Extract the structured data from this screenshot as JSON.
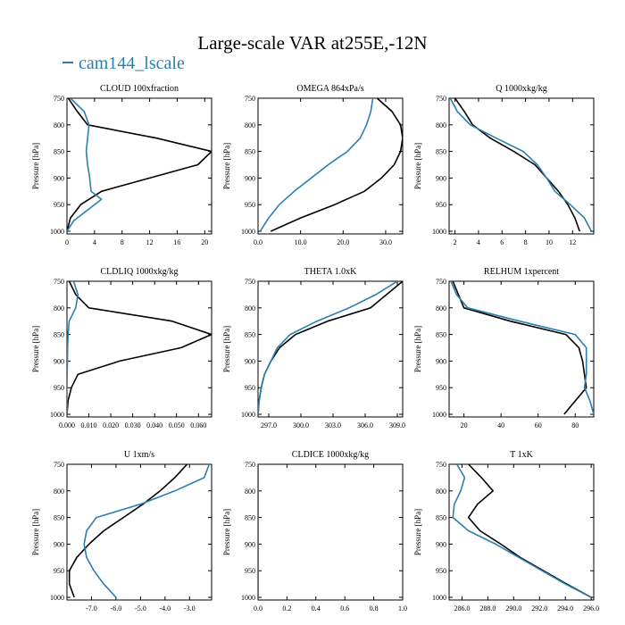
{
  "title": "Large-scale VAR at255E,-12N",
  "legend": {
    "label": "cam144_lscale",
    "color": "#2a7fb0"
  },
  "colors": {
    "model": "#2a7fb0",
    "reference": "#000000"
  },
  "chart_data": [
    {
      "type": "line",
      "title": "CLOUD  100xfraction",
      "ylabel": "Pressure [hPa]",
      "xlim": [
        0,
        21
      ],
      "ylim": [
        1005,
        750
      ],
      "xticks": [
        0,
        4,
        8,
        12,
        16,
        20
      ],
      "xtick_labels": [
        "0",
        "4",
        "8",
        "12",
        "16",
        "20"
      ],
      "yticks": [
        750,
        800,
        850,
        900,
        950,
        1000
      ],
      "series": [
        {
          "color": "#000000",
          "p": [
            750,
            775,
            800,
            825,
            850,
            875,
            900,
            925,
            950,
            975,
            1000
          ],
          "x": [
            0.2,
            1.5,
            3.0,
            13.0,
            21.0,
            19.0,
            12.0,
            5.0,
            2.0,
            0.5,
            0
          ]
        },
        {
          "color": "#2a7fb0",
          "p": [
            750,
            775,
            800,
            825,
            850,
            875,
            900,
            925,
            940,
            960,
            980,
            1000
          ],
          "x": [
            0.5,
            2.5,
            3.2,
            3.0,
            2.8,
            3.0,
            3.3,
            3.5,
            5.0,
            3.0,
            1.0,
            0
          ]
        }
      ]
    },
    {
      "type": "line",
      "title": "OMEGA  864xPa/s",
      "ylabel": "Pressure [hPa]",
      "xlim": [
        0,
        34
      ],
      "ylim": [
        1005,
        750
      ],
      "xticks": [
        0,
        10,
        20,
        30
      ],
      "xtick_labels": [
        "0.0",
        "10.0",
        "20.0",
        "30.0"
      ],
      "yticks": [
        750,
        800,
        850,
        900,
        950,
        1000
      ],
      "series": [
        {
          "color": "#000000",
          "p": [
            750,
            775,
            800,
            825,
            850,
            875,
            900,
            925,
            950,
            975,
            1000
          ],
          "x": [
            28.0,
            31.5,
            33.5,
            34.0,
            33.5,
            32.0,
            29.0,
            25.0,
            18.0,
            10.0,
            3.0
          ]
        },
        {
          "color": "#2a7fb0",
          "p": [
            750,
            775,
            800,
            825,
            850,
            875,
            900,
            925,
            950,
            975,
            1000
          ],
          "x": [
            27.0,
            26.5,
            25.5,
            24.0,
            21.0,
            16.5,
            12.5,
            8.5,
            5.0,
            2.5,
            0.5
          ]
        }
      ]
    },
    {
      "type": "line",
      "title": "Q  1000xkg/kg",
      "ylabel": "Pressure [hPa]",
      "xlim": [
        1.5,
        13.8
      ],
      "ylim": [
        1005,
        750
      ],
      "xticks": [
        2,
        4,
        6,
        8,
        10,
        12
      ],
      "xtick_labels": [
        "2",
        "4",
        "6",
        "8",
        "10",
        "12"
      ],
      "yticks": [
        750,
        800,
        850,
        900,
        950,
        1000
      ],
      "series": [
        {
          "color": "#000000",
          "p": [
            750,
            775,
            800,
            825,
            850,
            875,
            900,
            925,
            950,
            975,
            1000
          ],
          "x": [
            2.0,
            2.8,
            3.5,
            5.0,
            7.0,
            8.8,
            9.8,
            10.8,
            11.6,
            12.2,
            12.6
          ]
        },
        {
          "color": "#2a7fb0",
          "p": [
            750,
            775,
            800,
            825,
            850,
            875,
            900,
            925,
            950,
            975,
            1000
          ],
          "x": [
            1.6,
            2.2,
            3.3,
            5.5,
            7.8,
            9.0,
            9.8,
            10.5,
            11.8,
            13.0,
            13.6
          ]
        }
      ]
    },
    {
      "type": "line",
      "title": "CLDLIQ  1000xkg/kg",
      "ylabel": "Pressure [hPa]",
      "xlim": [
        0,
        0.066
      ],
      "ylim": [
        1005,
        750
      ],
      "xticks": [
        0,
        0.01,
        0.02,
        0.03,
        0.04,
        0.05,
        0.06
      ],
      "xtick_labels": [
        "0.000",
        "0.010",
        "0.020",
        "0.030",
        "0.040",
        "0.050",
        "0.060"
      ],
      "yticks": [
        750,
        800,
        850,
        900,
        950,
        1000
      ],
      "series": [
        {
          "color": "#000000",
          "p": [
            750,
            775,
            800,
            825,
            850,
            875,
            900,
            925,
            950,
            975,
            1000
          ],
          "x": [
            0.001,
            0.004,
            0.01,
            0.048,
            0.066,
            0.052,
            0.024,
            0.005,
            0.002,
            0.0005,
            0
          ]
        },
        {
          "color": "#2a7fb0",
          "p": [
            750,
            775,
            800,
            825,
            850,
            875,
            900,
            925,
            950,
            975,
            1000
          ],
          "x": [
            0.003,
            0.005,
            0.004,
            0.001,
            0.0005,
            0.0003,
            0.0002,
            0.0001,
            0,
            0,
            0
          ]
        }
      ]
    },
    {
      "type": "line",
      "title": "THETA  1.0xK",
      "ylabel": "Pressure [hPa]",
      "xlim": [
        296.0,
        309.5
      ],
      "ylim": [
        1005,
        750
      ],
      "xticks": [
        297,
        300,
        303,
        306,
        309
      ],
      "xtick_labels": [
        "297.0",
        "300.0",
        "303.0",
        "306.0",
        "309.0"
      ],
      "yticks": [
        750,
        800,
        850,
        900,
        950,
        1000
      ],
      "series": [
        {
          "color": "#000000",
          "p": [
            750,
            775,
            800,
            825,
            850,
            875,
            900,
            925,
            950,
            975,
            1000
          ],
          "x": [
            309.5,
            308.0,
            306.5,
            302.5,
            299.5,
            298.0,
            297.2,
            296.6,
            296.3,
            296.1,
            296.0
          ]
        },
        {
          "color": "#2a7fb0",
          "p": [
            750,
            775,
            800,
            825,
            850,
            875,
            900,
            925,
            950,
            975,
            1000
          ],
          "x": [
            309.0,
            307.0,
            304.5,
            301.5,
            299.0,
            297.8,
            297.2,
            296.6,
            296.3,
            296.1,
            296.0
          ]
        }
      ]
    },
    {
      "type": "line",
      "title": "RELHUM  1xpercent",
      "ylabel": "Pressure [hPa]",
      "xlim": [
        12,
        90
      ],
      "ylim": [
        1005,
        750
      ],
      "xticks": [
        20,
        40,
        60,
        80
      ],
      "xtick_labels": [
        "20",
        "40",
        "60",
        "80"
      ],
      "yticks": [
        750,
        800,
        850,
        900,
        950,
        1000
      ],
      "series": [
        {
          "color": "#000000",
          "p": [
            750,
            775,
            800,
            825,
            850,
            875,
            900,
            925,
            950,
            975,
            1000
          ],
          "x": [
            14,
            17,
            20,
            45,
            75,
            82,
            84,
            85,
            86,
            80,
            74
          ]
        },
        {
          "color": "#2a7fb0",
          "p": [
            750,
            775,
            800,
            825,
            850,
            875,
            900,
            925,
            950,
            975,
            1000
          ],
          "x": [
            13,
            16,
            22,
            50,
            80,
            86,
            86,
            86,
            85,
            88,
            90
          ]
        }
      ]
    },
    {
      "type": "line",
      "title": "U  1xm/s",
      "ylabel": "Pressure [hPa]",
      "xlim": [
        -8.0,
        -2.1
      ],
      "ylim": [
        1005,
        750
      ],
      "xticks": [
        -7,
        -6,
        -5,
        -4,
        -3
      ],
      "xtick_labels": [
        "-7.0",
        "-6.0",
        "-5.0",
        "-4.0",
        "-3.0"
      ],
      "yticks": [
        750,
        800,
        850,
        900,
        950,
        1000
      ],
      "series": [
        {
          "color": "#000000",
          "p": [
            750,
            775,
            800,
            825,
            850,
            875,
            900,
            925,
            950,
            975,
            1000
          ],
          "x": [
            -3.1,
            -3.6,
            -4.2,
            -4.9,
            -5.7,
            -6.5,
            -7.1,
            -7.6,
            -7.9,
            -7.9,
            -7.7
          ]
        },
        {
          "color": "#2a7fb0",
          "p": [
            750,
            775,
            800,
            825,
            850,
            875,
            900,
            925,
            950,
            975,
            1000
          ],
          "x": [
            -2.2,
            -2.4,
            -3.6,
            -5.0,
            -6.8,
            -7.2,
            -7.3,
            -7.2,
            -6.9,
            -6.5,
            -6.0
          ]
        }
      ]
    },
    {
      "type": "line",
      "title": "CLDICE  1000xkg/kg",
      "ylabel": "Pressure [hPa]",
      "xlim": [
        0,
        1.0
      ],
      "ylim": [
        1005,
        750
      ],
      "xticks": [
        0,
        0.2,
        0.4,
        0.6,
        0.8,
        1.0
      ],
      "xtick_labels": [
        "0.0",
        "0.2",
        "0.4",
        "0.6",
        "0.8",
        "1.0"
      ],
      "yticks": [
        750,
        800,
        850,
        900,
        950,
        1000
      ],
      "series": [
        {
          "color": "#000000",
          "p": [
            750,
            1000
          ],
          "x": [
            0,
            0
          ]
        },
        {
          "color": "#2a7fb0",
          "p": [
            750,
            1000
          ],
          "x": [
            0,
            0
          ]
        }
      ]
    },
    {
      "type": "line",
      "title": "T  1xK",
      "ylabel": "Pressure [hPa]",
      "xlim": [
        285.0,
        296.2
      ],
      "ylim": [
        1005,
        750
      ],
      "xticks": [
        286,
        288,
        290,
        292,
        294,
        296
      ],
      "xtick_labels": [
        "286.0",
        "288.0",
        "290.0",
        "292.0",
        "294.0",
        "296.0"
      ],
      "yticks": [
        750,
        800,
        850,
        900,
        950,
        1000
      ],
      "series": [
        {
          "color": "#000000",
          "p": [
            750,
            775,
            800,
            825,
            850,
            875,
            900,
            925,
            950,
            975,
            1000
          ],
          "x": [
            286.5,
            287.5,
            288.4,
            287.2,
            286.5,
            287.4,
            289.0,
            290.5,
            292.3,
            294.1,
            296.0
          ]
        },
        {
          "color": "#2a7fb0",
          "p": [
            750,
            775,
            800,
            825,
            850,
            875,
            900,
            925,
            950,
            975,
            1000
          ],
          "x": [
            285.6,
            286.2,
            285.9,
            285.4,
            285.3,
            286.5,
            288.6,
            290.4,
            292.2,
            294.0,
            296.0
          ]
        }
      ]
    }
  ]
}
